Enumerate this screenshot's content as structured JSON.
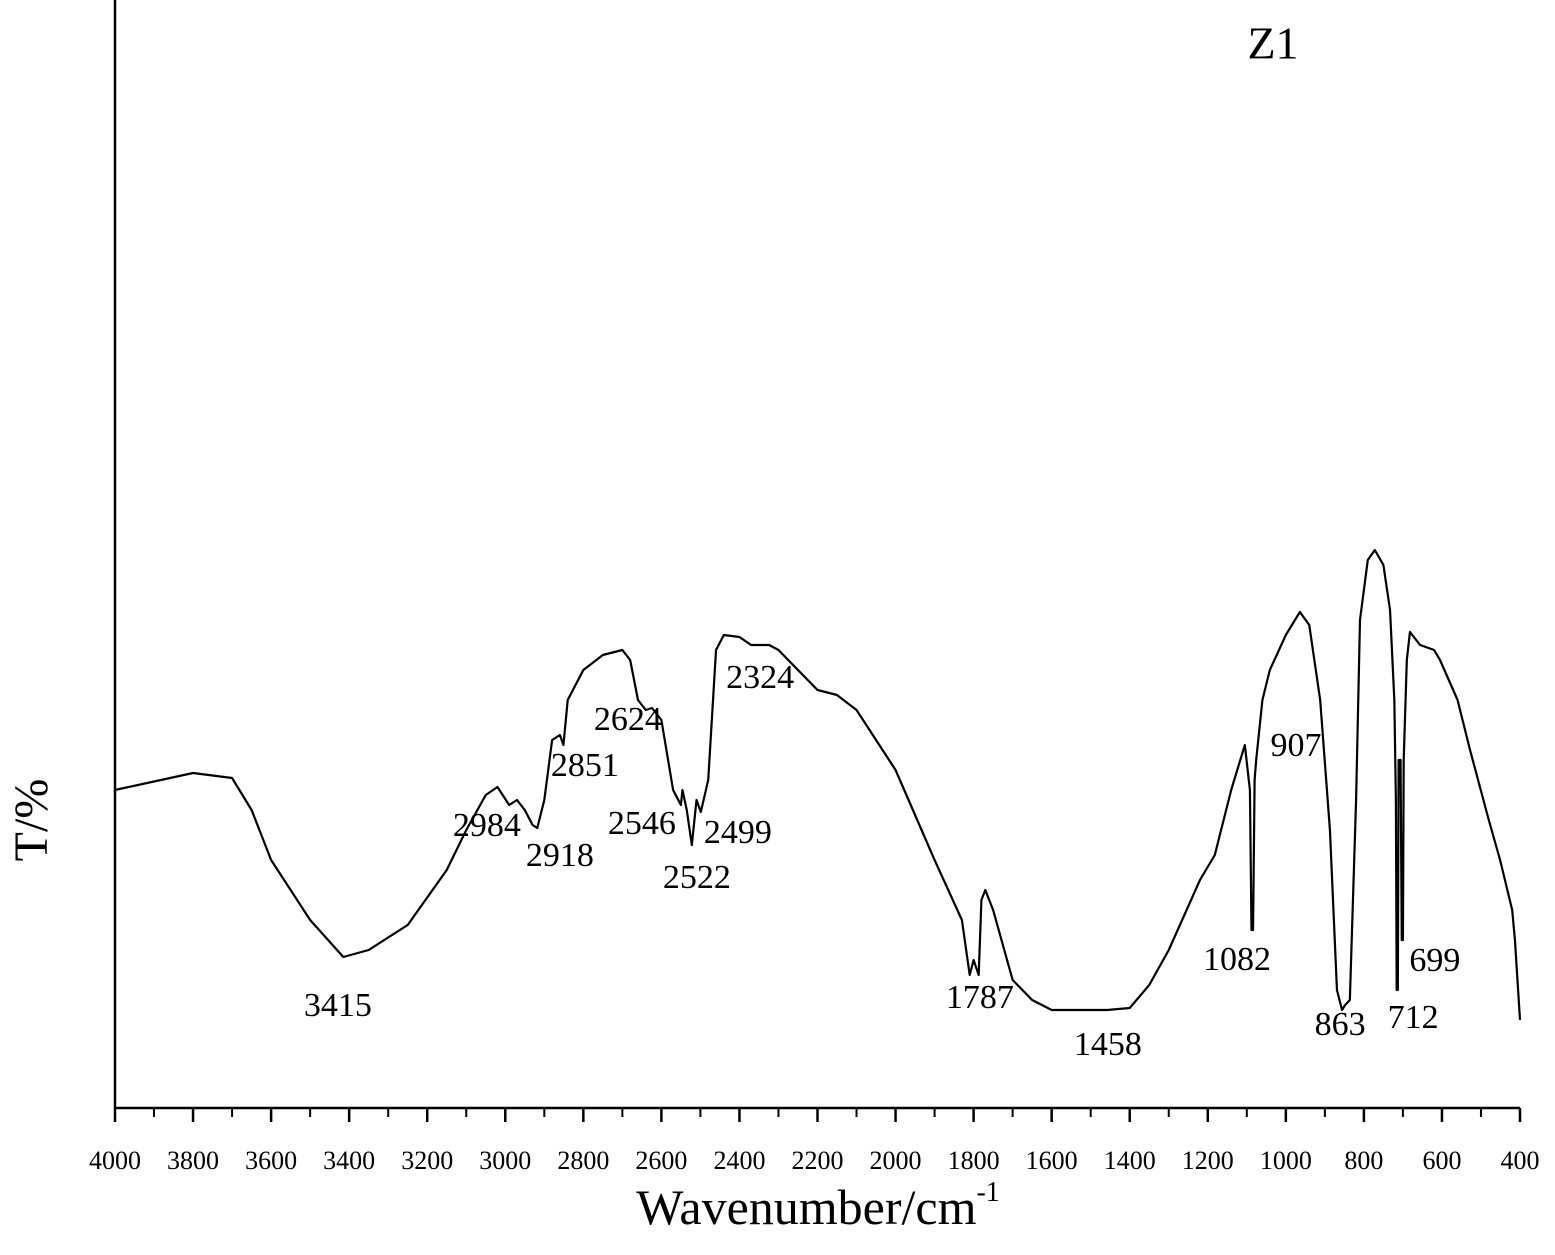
{
  "chart_data": {
    "type": "line",
    "title": "Z1",
    "xlabel": "Wavenumber/cm",
    "xlabel_superscript": "-1",
    "ylabel": "T/%",
    "color": "#000000",
    "xlim": [
      4000,
      400
    ],
    "ylim": [
      0,
      110.8
    ],
    "xticks": [
      4000,
      3800,
      3600,
      3400,
      3200,
      3000,
      2800,
      2600,
      2400,
      2200,
      2000,
      1800,
      1600,
      1400,
      1200,
      1000,
      800,
      600,
      400
    ],
    "xminorticks": [
      3900,
      3700,
      3500,
      3300,
      3100,
      2900,
      2700,
      2500,
      2300,
      2100,
      1900,
      1700,
      1500,
      1300,
      1100,
      900,
      700,
      500
    ],
    "grid": false,
    "x": [
      4000,
      3800,
      3700,
      3650,
      3600,
      3500,
      3415,
      3350,
      3250,
      3150,
      3100,
      3050,
      3020,
      2990,
      2970,
      2950,
      2930,
      2918,
      2900,
      2880,
      2860,
      2851,
      2840,
      2800,
      2750,
      2700,
      2680,
      2660,
      2640,
      2624,
      2600,
      2570,
      2550,
      2546,
      2535,
      2522,
      2510,
      2499,
      2480,
      2460,
      2440,
      2400,
      2370,
      2324,
      2300,
      2250,
      2200,
      2150,
      2100,
      2000,
      1900,
      1830,
      1810,
      1800,
      1787,
      1780,
      1770,
      1750,
      1700,
      1650,
      1600,
      1500,
      1458,
      1400,
      1350,
      1300,
      1220,
      1182,
      1140,
      1105,
      1095,
      1092,
      1088,
      1084,
      1080,
      1076,
      1060,
      1041,
      1000,
      964,
      940,
      912,
      887,
      869,
      856,
      848,
      836,
      820,
      810,
      790,
      772,
      750,
      733,
      722,
      718,
      716,
      713,
      711,
      706,
      703,
      700,
      698,
      690,
      682,
      656,
      620,
      605,
      560,
      528,
      480,
      451,
      420,
      413,
      400
    ],
    "values": [
      31.8,
      33.5,
      33.0,
      29.8,
      24.8,
      18.8,
      15.1,
      15.8,
      18.3,
      23.8,
      27.8,
      31.3,
      32.1,
      30.3,
      30.8,
      29.8,
      28.3,
      28.0,
      30.8,
      36.8,
      37.3,
      36.3,
      40.8,
      43.8,
      45.3,
      45.8,
      44.8,
      40.8,
      39.8,
      40.0,
      38.8,
      31.8,
      30.3,
      31.8,
      29.8,
      26.3,
      30.8,
      29.6,
      32.8,
      45.8,
      47.3,
      47.1,
      46.3,
      46.3,
      45.8,
      43.8,
      41.8,
      41.3,
      39.8,
      33.8,
      24.8,
      18.8,
      13.3,
      14.8,
      13.3,
      20.8,
      21.8,
      19.8,
      12.8,
      10.8,
      9.8,
      9.8,
      9.8,
      10.0,
      12.3,
      15.8,
      22.8,
      25.3,
      31.8,
      36.3,
      32.8,
      31.8,
      17.8,
      17.8,
      32.8,
      34.8,
      40.8,
      43.8,
      47.3,
      49.6,
      48.3,
      40.8,
      27.8,
      11.8,
      9.8,
      10.3,
      10.8,
      30.8,
      48.8,
      54.8,
      55.8,
      54.3,
      49.8,
      40.8,
      30.8,
      11.8,
      11.8,
      34.8,
      34.8,
      16.8,
      16.8,
      34.8,
      44.8,
      47.6,
      46.3,
      45.8,
      44.8,
      40.8,
      35.8,
      28.8,
      24.8,
      19.8,
      16.8,
      8.8
    ],
    "annotations": [
      {
        "text": "3415",
        "x": 3429,
        "y": 10.0
      },
      {
        "text": "2984",
        "x": 3047,
        "y": 28.0
      },
      {
        "text": "2918",
        "x": 2860,
        "y": 25.0
      },
      {
        "text": "2851",
        "x": 2796,
        "y": 34.0
      },
      {
        "text": "2624",
        "x": 2686,
        "y": 38.6
      },
      {
        "text": "2546",
        "x": 2650,
        "y": 28.2
      },
      {
        "text": "2499",
        "x": 2404,
        "y": 27.3
      },
      {
        "text": "2522",
        "x": 2509,
        "y": 22.8
      },
      {
        "text": "2324",
        "x": 2347,
        "y": 42.8
      },
      {
        "text": "1787",
        "x": 1784,
        "y": 10.8
      },
      {
        "text": "1458",
        "x": 1456,
        "y": 6.1
      },
      {
        "text": "1082",
        "x": 1125,
        "y": 14.6
      },
      {
        "text": "907",
        "x": 974,
        "y": 36.0
      },
      {
        "text": "863",
        "x": 861,
        "y": 8.1
      },
      {
        "text": "712",
        "x": 674,
        "y": 8.8
      },
      {
        "text": "699",
        "x": 618,
        "y": 14.5
      }
    ]
  }
}
